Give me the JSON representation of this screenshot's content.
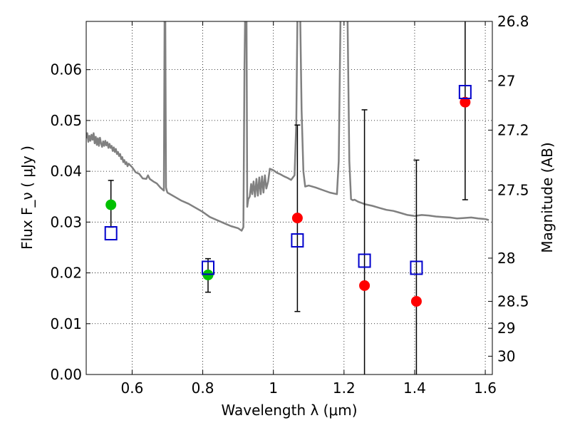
{
  "chart_data": {
    "type": "scatter",
    "title": "",
    "xlabel": "Wavelength  λ (μm)",
    "ylabel": "Flux  F_ν  ( μJy )",
    "y2label": "Magnitude (AB)",
    "xlim": [
      0.47,
      1.62
    ],
    "ylim": [
      0.0,
      0.0695
    ],
    "grid": true,
    "grid_style": "dotted",
    "x_ticks": [
      {
        "value": 0.6,
        "label": "0.6"
      },
      {
        "value": 0.8,
        "label": "0.8"
      },
      {
        "value": 1.0,
        "label": "1"
      },
      {
        "value": 1.2,
        "label": "1.2"
      },
      {
        "value": 1.4,
        "label": "1.4"
      },
      {
        "value": 1.6,
        "label": "1.6"
      }
    ],
    "y_ticks": [
      {
        "value": 0.0,
        "label": "0.00"
      },
      {
        "value": 0.01,
        "label": "0.01"
      },
      {
        "value": 0.02,
        "label": "0.02"
      },
      {
        "value": 0.03,
        "label": "0.03"
      },
      {
        "value": 0.04,
        "label": "0.04"
      },
      {
        "value": 0.05,
        "label": "0.05"
      },
      {
        "value": 0.06,
        "label": "0.06"
      }
    ],
    "y2_ticks": [
      {
        "flux": 0.0695,
        "label": "26.8"
      },
      {
        "flux": 0.0578,
        "label": "27"
      },
      {
        "flux": 0.0481,
        "label": "27.2"
      },
      {
        "flux": 0.0363,
        "label": "27.5"
      },
      {
        "flux": 0.0229,
        "label": "28"
      },
      {
        "flux": 0.0144,
        "label": "28.5"
      },
      {
        "flux": 0.0091,
        "label": "29"
      },
      {
        "flux": 0.0036,
        "label": "30"
      }
    ],
    "colors": {
      "model": "#808080",
      "green": "#00c000",
      "red": "#ff0000",
      "square": "#0000cc",
      "errorbar": "#000000",
      "grid": "#000000"
    },
    "series": [
      {
        "name": "model_spectrum",
        "kind": "line",
        "x": [
          0.47,
          0.473,
          0.476,
          0.479,
          0.482,
          0.485,
          0.488,
          0.491,
          0.494,
          0.497,
          0.5,
          0.503,
          0.506,
          0.509,
          0.512,
          0.515,
          0.518,
          0.521,
          0.524,
          0.527,
          0.53,
          0.533,
          0.536,
          0.539,
          0.542,
          0.545,
          0.548,
          0.551,
          0.554,
          0.557,
          0.56,
          0.563,
          0.566,
          0.569,
          0.572,
          0.575,
          0.578,
          0.581,
          0.584,
          0.587,
          0.59,
          0.6,
          0.61,
          0.62,
          0.63,
          0.64,
          0.645,
          0.65,
          0.66,
          0.67,
          0.68,
          0.69,
          0.692,
          0.694,
          0.696,
          0.698,
          0.7,
          0.72,
          0.74,
          0.76,
          0.78,
          0.8,
          0.82,
          0.84,
          0.86,
          0.88,
          0.9,
          0.91,
          0.915,
          0.918,
          0.92,
          0.922,
          0.924,
          0.926,
          0.929,
          0.933,
          0.937,
          0.94,
          0.944,
          0.948,
          0.952,
          0.956,
          0.96,
          0.964,
          0.968,
          0.972,
          0.976,
          0.98,
          0.985,
          0.99,
          1.0,
          1.01,
          1.02,
          1.03,
          1.04,
          1.05,
          1.06,
          1.065,
          1.068,
          1.072,
          1.076,
          1.08,
          1.085,
          1.09,
          1.1,
          1.12,
          1.14,
          1.16,
          1.18,
          1.185,
          1.19,
          1.195,
          1.21,
          1.215,
          1.22,
          1.225,
          1.23,
          1.24,
          1.26,
          1.28,
          1.3,
          1.32,
          1.34,
          1.36,
          1.38,
          1.4,
          1.42,
          1.44,
          1.46,
          1.48,
          1.5,
          1.52,
          1.54,
          1.56,
          1.58,
          1.6,
          1.61
        ],
        "y": [
          0.0465,
          0.0475,
          0.0458,
          0.047,
          0.046,
          0.0472,
          0.0462,
          0.0475,
          0.0455,
          0.0468,
          0.0452,
          0.0465,
          0.045,
          0.0466,
          0.0455,
          0.0448,
          0.0459,
          0.045,
          0.046,
          0.0451,
          0.0457,
          0.0446,
          0.0454,
          0.0446,
          0.045,
          0.044,
          0.0447,
          0.0438,
          0.0444,
          0.0434,
          0.0438,
          0.043,
          0.0434,
          0.0424,
          0.0428,
          0.0418,
          0.0422,
          0.0414,
          0.0418,
          0.041,
          0.0415,
          0.0408,
          0.0398,
          0.0395,
          0.0386,
          0.0385,
          0.0392,
          0.0385,
          0.038,
          0.0376,
          0.0368,
          0.0362,
          0.07,
          0.07,
          0.0368,
          0.0362,
          0.0358,
          0.035,
          0.0342,
          0.0336,
          0.0328,
          0.032,
          0.031,
          0.0304,
          0.0298,
          0.0292,
          0.0288,
          0.0283,
          0.029,
          0.06,
          0.07,
          0.07,
          0.07,
          0.033,
          0.0345,
          0.035,
          0.0375,
          0.0355,
          0.038,
          0.035,
          0.0385,
          0.0352,
          0.0388,
          0.0355,
          0.039,
          0.0358,
          0.0392,
          0.0366,
          0.038,
          0.0405,
          0.0402,
          0.0397,
          0.0394,
          0.039,
          0.0387,
          0.0383,
          0.0392,
          0.05,
          0.07,
          0.07,
          0.07,
          0.052,
          0.04,
          0.037,
          0.0372,
          0.0368,
          0.0363,
          0.0358,
          0.0355,
          0.042,
          0.07,
          0.07,
          0.07,
          0.042,
          0.0345,
          0.0343,
          0.0344,
          0.034,
          0.0335,
          0.0332,
          0.0328,
          0.0324,
          0.0322,
          0.0318,
          0.0314,
          0.0312,
          0.0314,
          0.0313,
          0.0311,
          0.031,
          0.0309,
          0.0307,
          0.0308,
          0.0309,
          0.0307,
          0.0306,
          0.0304
        ]
      },
      {
        "name": "green_points",
        "kind": "points",
        "marker": "circle",
        "color": "#00c000",
        "points": [
          {
            "x": 0.54,
            "y": 0.0334,
            "err_lo": 0.029,
            "err_hi": 0.0382
          },
          {
            "x": 0.815,
            "y": 0.0196,
            "err_lo": 0.0162,
            "err_hi": 0.0228
          }
        ]
      },
      {
        "name": "red_points",
        "kind": "points",
        "marker": "circle",
        "color": "#ff0000",
        "points": [
          {
            "x": 1.068,
            "y": 0.0308,
            "err_lo": 0.0124,
            "err_hi": 0.0491
          },
          {
            "x": 1.258,
            "y": 0.0175,
            "err_lo": 0.0,
            "err_hi": 0.0521
          },
          {
            "x": 1.405,
            "y": 0.0144,
            "err_lo": 0.0,
            "err_hi": 0.0422
          },
          {
            "x": 1.543,
            "y": 0.0536,
            "err_lo": 0.0344,
            "err_hi": 0.0695
          }
        ]
      },
      {
        "name": "model_photometry",
        "kind": "points",
        "marker": "square",
        "color": "#0000cc",
        "points": [
          {
            "x": 0.54,
            "y": 0.0278
          },
          {
            "x": 0.815,
            "y": 0.021
          },
          {
            "x": 1.068,
            "y": 0.0264
          },
          {
            "x": 1.258,
            "y": 0.0224
          },
          {
            "x": 1.405,
            "y": 0.021
          },
          {
            "x": 1.543,
            "y": 0.0556
          }
        ]
      }
    ]
  }
}
